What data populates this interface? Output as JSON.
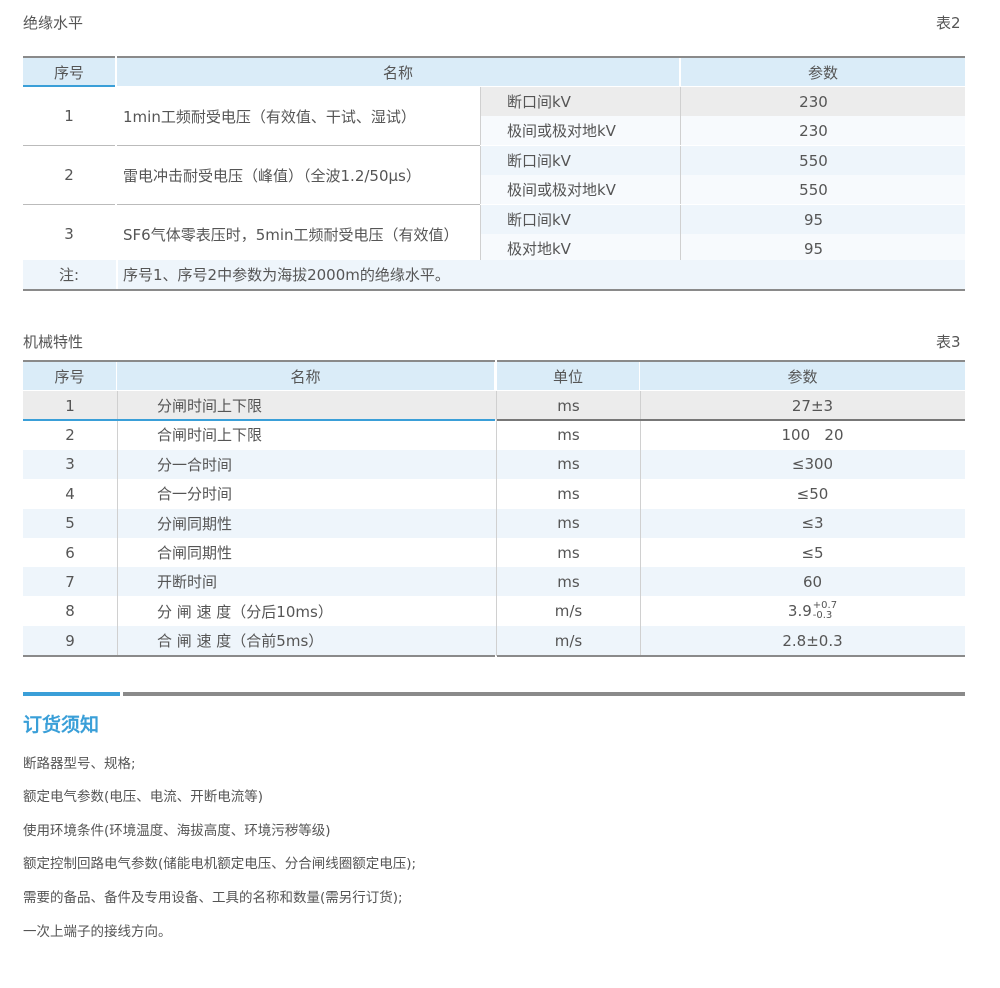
{
  "table2": {
    "caption": "绝缘水平",
    "label": "表2",
    "headers": [
      "序号",
      "名称",
      "参数"
    ],
    "rows": [
      {
        "no": "1",
        "name": "1min工频耐受电压（有效值、干试、湿试）",
        "sub": [
          {
            "item": "断口间kV",
            "value": "230"
          },
          {
            "item": "极间或极对地kV",
            "value": "230"
          }
        ]
      },
      {
        "no": "2",
        "name": "雷电冲击耐受电压（峰值）（全波1.2/50μs）",
        "sub": [
          {
            "item": "断口间kV",
            "value": "550"
          },
          {
            "item": "极间或极对地kV",
            "value": "550"
          }
        ]
      },
      {
        "no": "3",
        "name": "SF6气体零表压时，5min工频耐受电压（有效值）",
        "sub": [
          {
            "item": "断口间kV",
            "value": "95"
          },
          {
            "item": "极对地kV",
            "value": "95"
          }
        ]
      }
    ],
    "note_label": "注:",
    "note": "序号1、序号2中参数为海拔2000m的绝缘水平。"
  },
  "table3": {
    "caption": "机械特性",
    "label": "表3",
    "headers": [
      "序号",
      "名称",
      "单位",
      "参数"
    ],
    "rows": [
      {
        "no": "1",
        "name": "分闸时间上下限",
        "unit": "ms",
        "value": "27±3"
      },
      {
        "no": "2",
        "name": "合闸时间上下限",
        "unit": "ms",
        "value": "100   20"
      },
      {
        "no": "3",
        "name": "分一合时间",
        "unit": "ms",
        "value": "≤300"
      },
      {
        "no": "4",
        "name": "合一分时间",
        "unit": "ms",
        "value": "≤50"
      },
      {
        "no": "5",
        "name": "分闸同期性",
        "unit": "ms",
        "value": "≤3"
      },
      {
        "no": "6",
        "name": "合闸同期性",
        "unit": "ms",
        "value": "≤5"
      },
      {
        "no": "7",
        "name": "开断时间",
        "unit": "ms",
        "value": "60"
      },
      {
        "no": "8",
        "name": "分 闸 速 度（分后10ms）",
        "unit": "m/s",
        "value": "3.9",
        "sup": "+0.7",
        "sub": "-0.3"
      },
      {
        "no": "9",
        "name": "合 闸 速 度（合前5ms）",
        "unit": "m/s",
        "value": "2.8±0.3"
      }
    ]
  },
  "ordering": {
    "title": "订货须知",
    "items": [
      "断路器型号、规格;",
      "额定电气参数(电压、电流、开断电流等)",
      "使用环境条件(环境温度、海拔高度、环境污秽等级)",
      "额定控制回路电气参数(储能电机额定电压、分合闸线圈额定电压);",
      "需要的备品、备件及专用设备、工具的名称和数量(需另行订货);",
      "一次上端子的接线方向。"
    ]
  },
  "colors": {
    "accent": "#3a9fd8",
    "header_bg": "#daecf8",
    "row_alt": "#eef5fb",
    "row_gray": "#ececec"
  }
}
